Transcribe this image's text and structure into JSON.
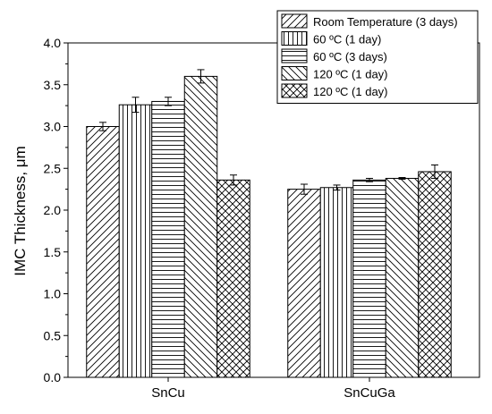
{
  "chart_data": {
    "type": "bar",
    "title": "",
    "xlabel": "",
    "ylabel": "IMC Thickness, μm",
    "ylim": [
      0,
      4
    ],
    "yticks": [
      "0.0",
      "0.5",
      "1.0",
      "1.5",
      "2.0",
      "2.5",
      "3.0",
      "3.5",
      "4.0"
    ],
    "categories": [
      "SnCu",
      "SnCuGa"
    ],
    "legend_position": "top-right",
    "grid": false,
    "series": [
      {
        "name": "Room Temperature (3 days)",
        "pattern": "diag-forward",
        "values": [
          3.0,
          2.25
        ],
        "errors": [
          0.05,
          0.06
        ]
      },
      {
        "name": "60 ºC (1 day)",
        "pattern": "vertical",
        "values": [
          3.26,
          2.27
        ],
        "errors": [
          0.09,
          0.03
        ]
      },
      {
        "name": "60 ºC (3 days)",
        "pattern": "horizontal",
        "values": [
          3.3,
          2.36
        ],
        "errors": [
          0.05,
          0.02
        ]
      },
      {
        "name": "120 ºC (1 day)",
        "pattern": "diag-backward",
        "values": [
          3.6,
          2.38
        ],
        "errors": [
          0.08,
          0.01
        ]
      },
      {
        "name": "120 ºC (1 day)",
        "pattern": "crosshatch",
        "values": [
          2.36,
          2.46
        ],
        "errors": [
          0.06,
          0.08
        ]
      }
    ]
  }
}
